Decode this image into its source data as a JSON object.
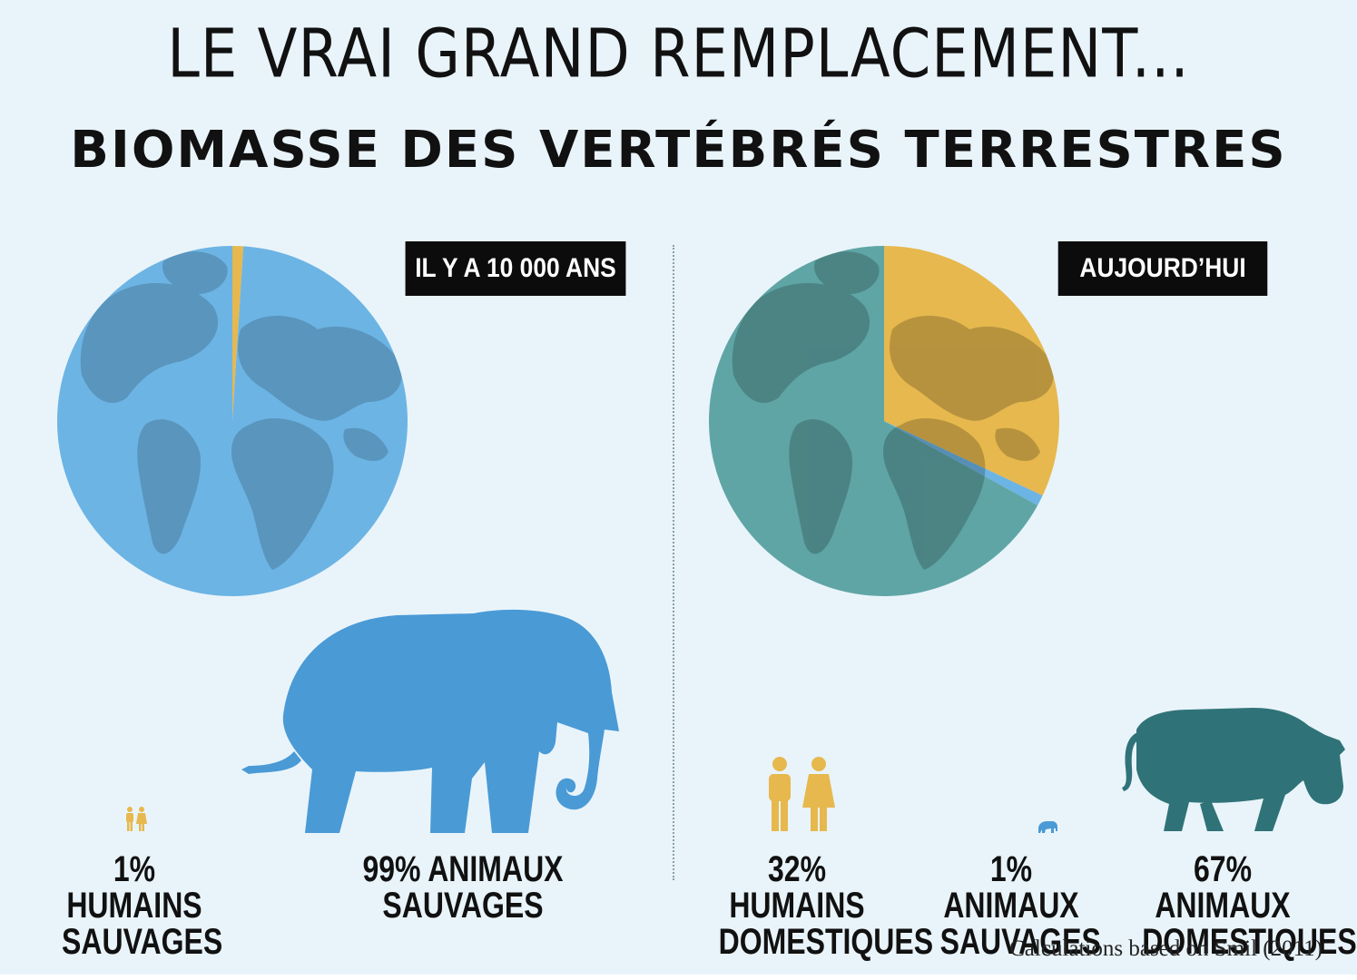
{
  "header": {
    "title": "LE VRAI GRAND REMPLACEMENT...",
    "subtitle": "BIOMASSE DES VERTÉBRÉS TERRESTRES"
  },
  "left": {
    "tag": "IL Y A 10 000 ANS",
    "label_humans_1": "1% HUMAINS",
    "label_humans_2": "SAUVAGES",
    "label_wild": "99% ANIMAUX SAUVAGES"
  },
  "right": {
    "tag": "AUJOURD’HUI",
    "label_humans_1": "32% HUMAINS",
    "label_humans_2": "DOMESTIQUES",
    "label_wild_1": "1% ANIMAUX",
    "label_wild_2": "SAUVAGES",
    "label_dom_1": "67% ANIMAUX",
    "label_dom_2": "DOMESTIQUES"
  },
  "source": "Calculations based on Smil (2011)",
  "colors": {
    "background": "#e9f4fa",
    "humans": "#e6b84e",
    "wild_animals": "#6cb4e4",
    "domestic_animals": "#5fa5a6",
    "elephant": "#4a9ad6",
    "cow": "#2f7378"
  },
  "icons": [
    "globe-icon",
    "humans-icon",
    "elephant-icon",
    "cow-icon"
  ],
  "chart_data": [
    {
      "type": "pie",
      "title": "IL Y A 10 000 ANS",
      "categories": [
        "HUMAINS SAUVAGES",
        "ANIMAUX SAUVAGES"
      ],
      "values": [
        1,
        99
      ],
      "colors": [
        "#e6b84e",
        "#6cb4e4"
      ]
    },
    {
      "type": "pie",
      "title": "AUJOURD’HUI",
      "categories": [
        "HUMAINS DOMESTIQUES",
        "ANIMAUX SAUVAGES",
        "ANIMAUX DOMESTIQUES"
      ],
      "values": [
        32,
        1,
        67
      ],
      "colors": [
        "#e6b84e",
        "#6cb4e4",
        "#5fa5a6"
      ]
    }
  ]
}
